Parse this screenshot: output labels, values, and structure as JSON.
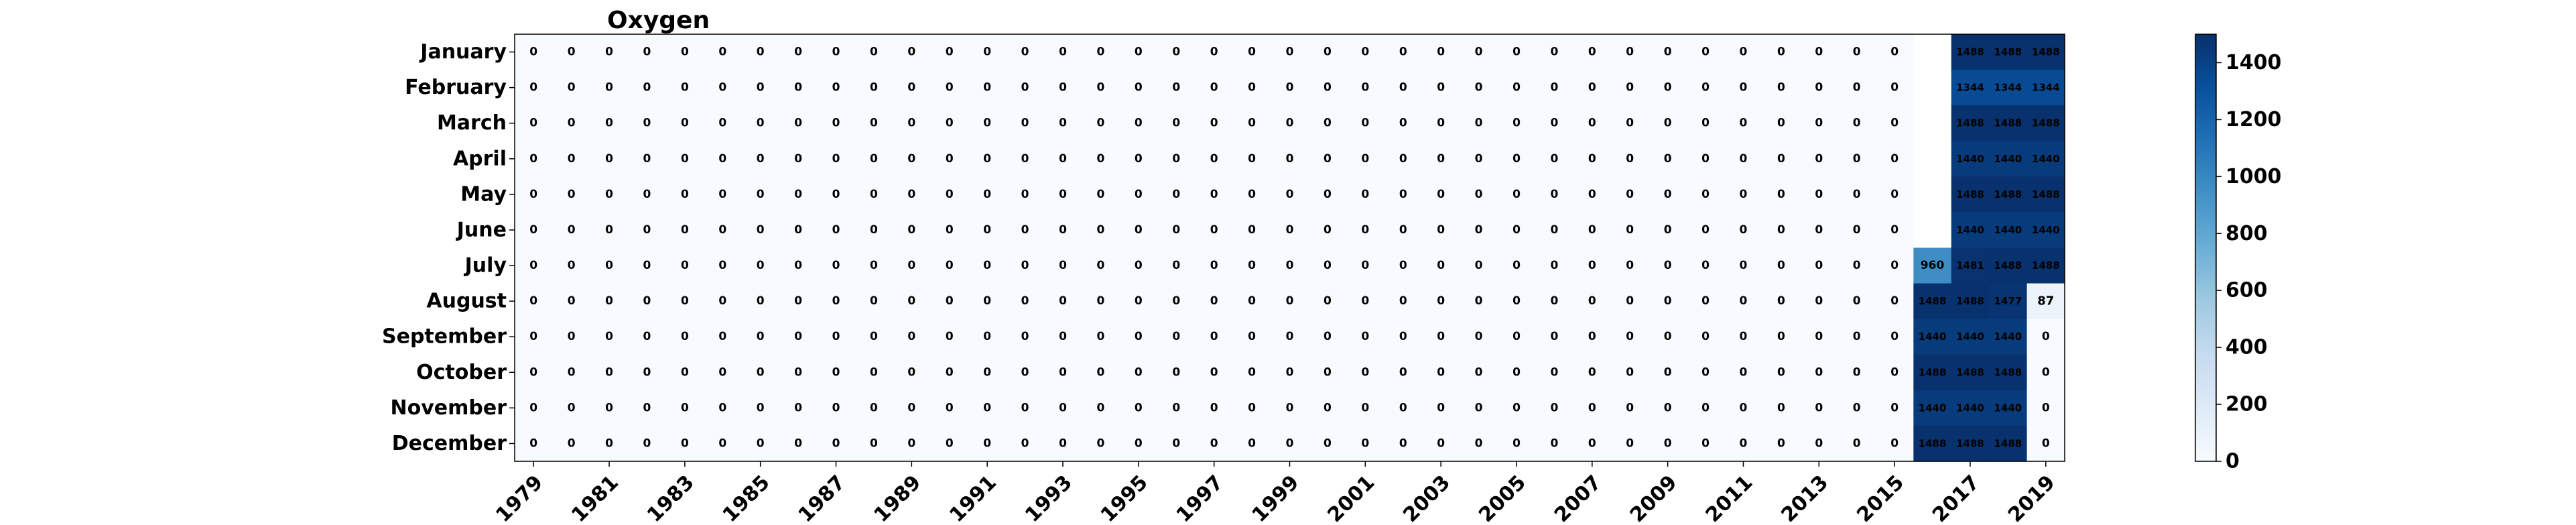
{
  "chart_data": {
    "type": "heatmap",
    "title": "Oxygen",
    "xlabel": "",
    "ylabel": "",
    "years": [
      1979,
      1980,
      1981,
      1982,
      1983,
      1984,
      1985,
      1986,
      1987,
      1988,
      1989,
      1990,
      1991,
      1992,
      1993,
      1994,
      1995,
      1996,
      1997,
      1998,
      1999,
      2000,
      2001,
      2002,
      2003,
      2004,
      2005,
      2006,
      2007,
      2008,
      2009,
      2010,
      2011,
      2012,
      2013,
      2014,
      2015,
      2016,
      2017,
      2018,
      2019
    ],
    "x_tick_labels": [
      "1979",
      "1981",
      "1983",
      "1985",
      "1987",
      "1989",
      "1991",
      "1993",
      "1995",
      "1997",
      "1999",
      "2001",
      "2003",
      "2005",
      "2007",
      "2009",
      "2011",
      "2013",
      "2015",
      "2017",
      "2019"
    ],
    "months": [
      "January",
      "February",
      "March",
      "April",
      "May",
      "June",
      "July",
      "August",
      "September",
      "October",
      "November",
      "December"
    ],
    "late_values": [
      [
        null,
        1488,
        1488,
        1488
      ],
      [
        null,
        1344,
        1344,
        1344
      ],
      [
        null,
        1488,
        1488,
        1488
      ],
      [
        null,
        1440,
        1440,
        1440
      ],
      [
        null,
        1488,
        1488,
        1488
      ],
      [
        null,
        1440,
        1440,
        1440
      ],
      [
        960,
        1481,
        1488,
        1488
      ],
      [
        1488,
        1488,
        1477,
        87
      ],
      [
        1440,
        1440,
        1440,
        0
      ],
      [
        1488,
        1488,
        1488,
        0
      ],
      [
        1440,
        1440,
        1440,
        0
      ],
      [
        1488,
        1488,
        1488,
        0
      ]
    ],
    "colorbar": {
      "colormap": "Blues",
      "range": [
        0,
        1500
      ],
      "ticks": [
        0,
        200,
        400,
        600,
        800,
        1000,
        1200,
        1400
      ]
    },
    "grid": false
  }
}
